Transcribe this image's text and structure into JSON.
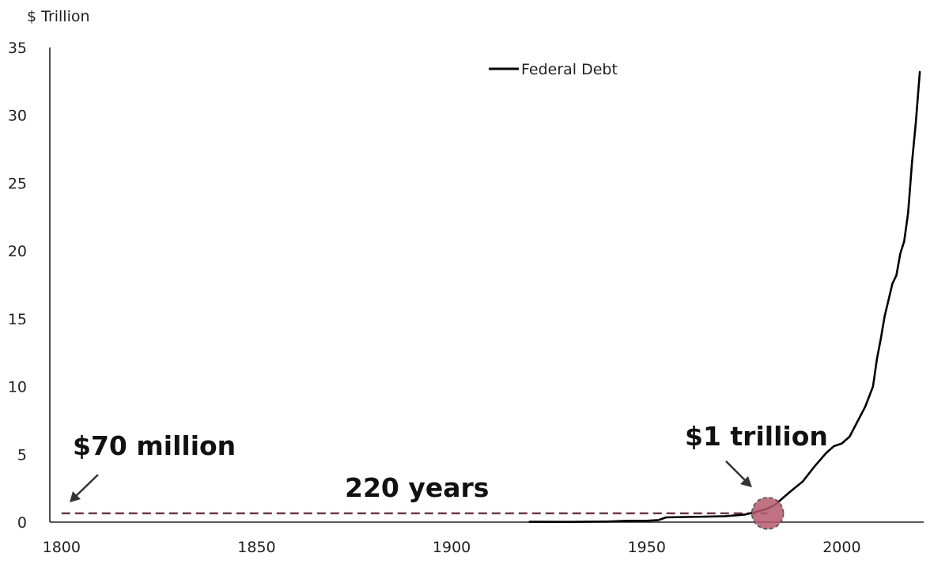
{
  "chart_data": {
    "type": "line",
    "unit_label": "$ Trillion",
    "xlim": [
      1797,
      2021
    ],
    "ylim": [
      0,
      35
    ],
    "x_ticks": [
      1800,
      1850,
      1900,
      1950,
      2000
    ],
    "y_ticks": [
      0,
      5,
      10,
      15,
      20,
      25,
      30,
      35
    ],
    "legend_position": "top-center",
    "grid": false,
    "series": [
      {
        "name": "Federal Debt",
        "color": "#000000",
        "x": [
          1920,
          1930,
          1940,
          1945,
          1950,
          1953,
          1955,
          1960,
          1965,
          1970,
          1975,
          1978,
          1981,
          1983,
          1985,
          1987,
          1990,
          1993,
          1996,
          1998,
          2000,
          2002,
          2004,
          2006,
          2008,
          2009,
          2010,
          2011,
          2012,
          2013,
          2014,
          2015,
          2016,
          2017,
          2018,
          2019,
          2020
        ],
        "y": [
          0.024,
          0.016,
          0.043,
          0.1,
          0.1,
          0.15,
          0.35,
          0.38,
          0.4,
          0.43,
          0.55,
          0.75,
          1.0,
          1.3,
          1.8,
          2.3,
          3.0,
          4.1,
          5.1,
          5.6,
          5.8,
          6.3,
          7.4,
          8.5,
          10.0,
          12.0,
          13.5,
          15.2,
          16.4,
          17.6,
          18.2,
          19.8,
          20.7,
          22.8,
          26.5,
          29.5,
          33.2
        ]
      }
    ],
    "annotations": {
      "start_label": "$70 million",
      "end_label": "$1 trillion",
      "span_label": "220 years",
      "reference_level": 0.65,
      "reference_start_x": 1800,
      "reference_end_x": 1981,
      "reference_color": "#6b3a45",
      "marker_color": "#b65a6f"
    }
  }
}
